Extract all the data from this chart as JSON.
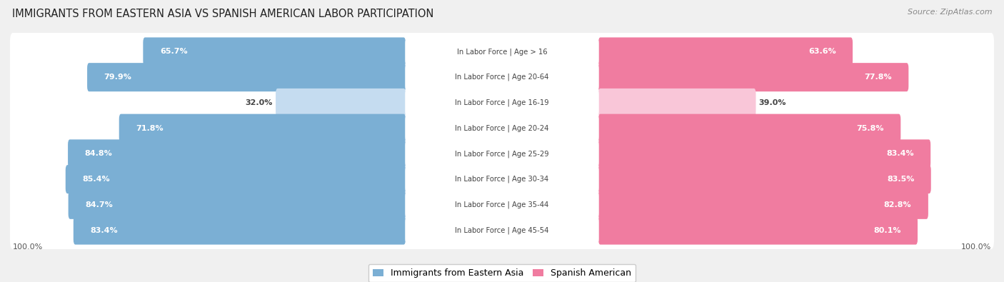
{
  "title": "IMMIGRANTS FROM EASTERN ASIA VS SPANISH AMERICAN LABOR PARTICIPATION",
  "source": "Source: ZipAtlas.com",
  "categories": [
    "In Labor Force | Age > 16",
    "In Labor Force | Age 20-64",
    "In Labor Force | Age 16-19",
    "In Labor Force | Age 20-24",
    "In Labor Force | Age 25-29",
    "In Labor Force | Age 30-34",
    "In Labor Force | Age 35-44",
    "In Labor Force | Age 45-54"
  ],
  "eastern_asia": [
    65.7,
    79.9,
    32.0,
    71.8,
    84.8,
    85.4,
    84.7,
    83.4
  ],
  "spanish_american": [
    63.6,
    77.8,
    39.0,
    75.8,
    83.4,
    83.5,
    82.8,
    80.1
  ],
  "eastern_asia_color": "#7BAFD4",
  "spanish_american_color": "#F07CA0",
  "eastern_asia_light_color": "#C5DCF0",
  "spanish_american_light_color": "#F9C6D8",
  "background_color": "#f0f0f0",
  "row_bg_color": "#ffffff",
  "max_value": 100.0,
  "label_fontsize": 8.0,
  "title_fontsize": 10.5,
  "legend_fontsize": 9,
  "source_fontsize": 8
}
